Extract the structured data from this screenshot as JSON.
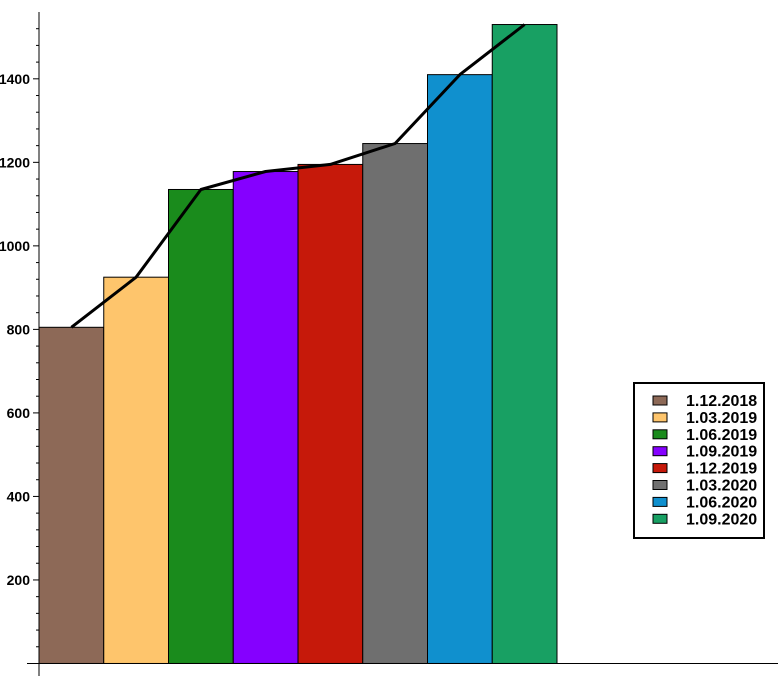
{
  "chart_data": {
    "type": "bar",
    "categories": [
      "1.12.2018",
      "1.03.2019",
      "1.06.2019",
      "1.09.2019",
      "1.12.2019",
      "1.03.2020",
      "1.06.2020",
      "1.09.2020"
    ],
    "values": [
      805,
      925,
      1135,
      1178,
      1195,
      1245,
      1410,
      1530
    ],
    "bar_colors": [
      "#8d6957",
      "#fec56c",
      "#1a8b1c",
      "#8500ff",
      "#c6190a",
      "#6f6f6f",
      "#1090ce",
      "#18a063"
    ],
    "line_overlay": {
      "color": "#000000",
      "values": [
        805,
        925,
        1135,
        1178,
        1195,
        1245,
        1410,
        1530
      ]
    },
    "y_ticks": [
      200,
      400,
      600,
      800,
      1000,
      1200,
      1400
    ],
    "ylim": [
      -30,
      1560
    ],
    "legend_position": "right",
    "title": "",
    "xlabel": "",
    "ylabel": ""
  }
}
